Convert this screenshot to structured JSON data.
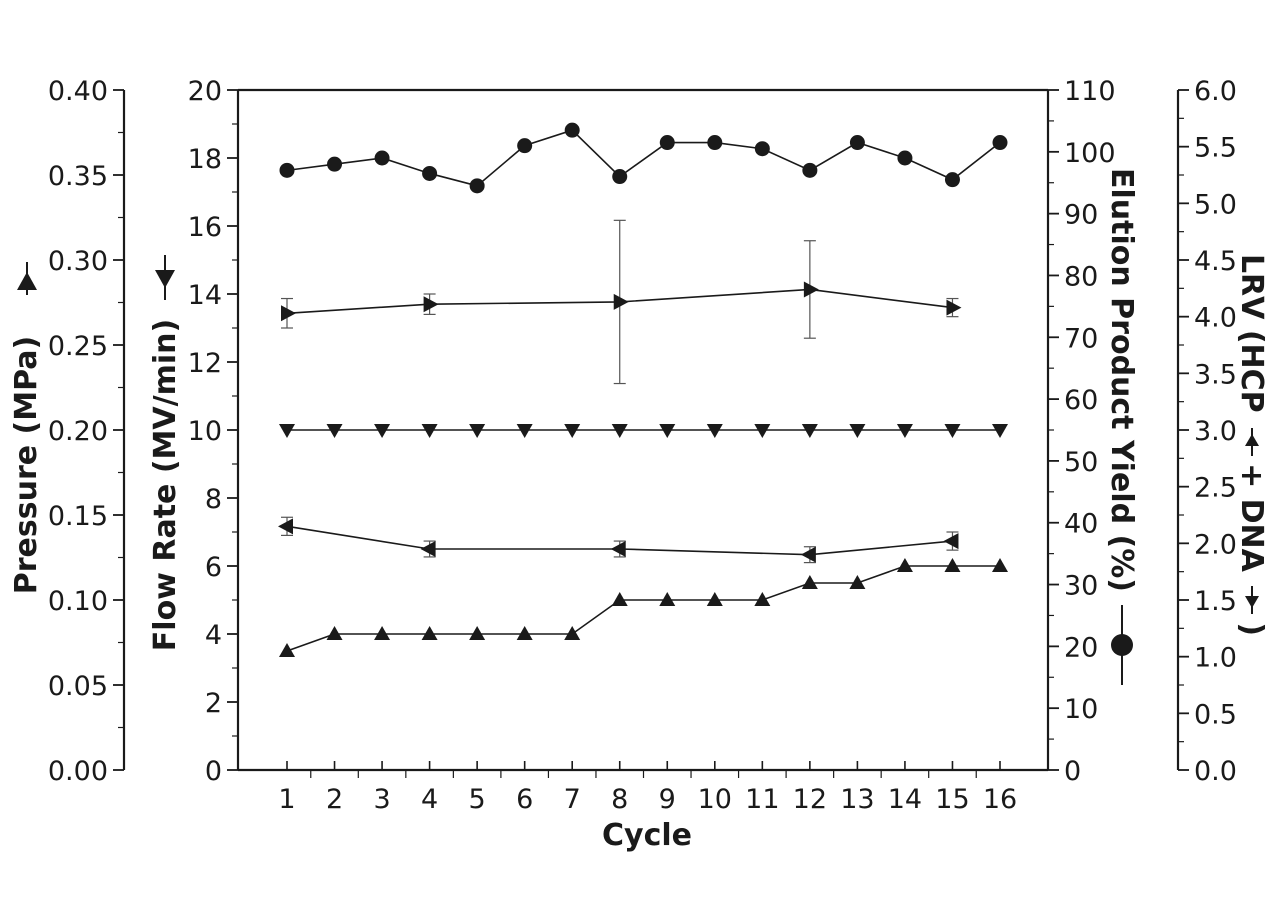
{
  "chart_data": {
    "type": "line",
    "xlabel": "Cycle",
    "x_ticks": [
      1,
      2,
      3,
      4,
      5,
      6,
      7,
      8,
      9,
      10,
      11,
      12,
      13,
      14,
      15,
      16
    ],
    "axes": {
      "flow": {
        "label": "Flow Rate (MV/min)",
        "range": [
          0,
          20
        ],
        "ticks": [
          "0",
          "2",
          "4",
          "6",
          "8",
          "10",
          "12",
          "14",
          "16",
          "18",
          "20"
        ],
        "tick_values": [
          0,
          2,
          4,
          6,
          8,
          10,
          12,
          14,
          16,
          18,
          20
        ]
      },
      "pressure": {
        "label": "Pressure (MPa)",
        "range": [
          0,
          0.4
        ],
        "ticks": [
          "0.00",
          "0.05",
          "0.10",
          "0.15",
          "0.20",
          "0.25",
          "0.30",
          "0.35",
          "0.40"
        ],
        "tick_values": [
          0,
          0.05,
          0.1,
          0.15,
          0.2,
          0.25,
          0.3,
          0.35,
          0.4
        ]
      },
      "yield": {
        "label": "Elution Product Yield (%)",
        "range": [
          0,
          110
        ],
        "ticks": [
          "0",
          "10",
          "20",
          "30",
          "40",
          "50",
          "60",
          "70",
          "80",
          "90",
          "100",
          "110"
        ],
        "tick_values": [
          0,
          10,
          20,
          30,
          40,
          50,
          60,
          70,
          80,
          90,
          100,
          110
        ]
      },
      "lrv": {
        "label": "LRV (HCP",
        "label_mid": " + DNA",
        "label_end": ")",
        "range": [
          0,
          6
        ],
        "ticks": [
          "0.0",
          "0.5",
          "1.0",
          "1.5",
          "2.0",
          "2.5",
          "3.0",
          "3.5",
          "4.0",
          "4.5",
          "5.0",
          "5.5",
          "6.0"
        ],
        "tick_values": [
          0,
          0.5,
          1,
          1.5,
          2,
          2.5,
          3,
          3.5,
          4,
          4.5,
          5,
          5.5,
          6
        ]
      }
    },
    "series": [
      {
        "name": "Elution Product Yield",
        "axis": "yield",
        "marker": "circle",
        "x": [
          1,
          2,
          3,
          4,
          5,
          6,
          7,
          8,
          9,
          10,
          11,
          12,
          13,
          14,
          15,
          16
        ],
        "values": [
          97,
          98,
          99,
          96.5,
          94.5,
          101,
          103.5,
          96,
          101.5,
          101.5,
          100.5,
          97,
          101.5,
          99,
          95.5,
          101.5
        ]
      },
      {
        "name": "Flow Rate",
        "axis": "flow",
        "marker": "triangle-down",
        "x": [
          1,
          2,
          3,
          4,
          5,
          6,
          7,
          8,
          9,
          10,
          11,
          12,
          13,
          14,
          15,
          16
        ],
        "values": [
          10,
          10,
          10,
          10,
          10,
          10,
          10,
          10,
          10,
          10,
          10,
          10,
          10,
          10,
          10,
          10
        ]
      },
      {
        "name": "Pressure",
        "axis": "pressure",
        "marker": "triangle-up",
        "x": [
          1,
          2,
          3,
          4,
          5,
          6,
          7,
          8,
          9,
          10,
          11,
          12,
          13,
          14,
          15,
          16
        ],
        "values": [
          0.07,
          0.08,
          0.08,
          0.08,
          0.08,
          0.08,
          0.08,
          0.1,
          0.1,
          0.1,
          0.1,
          0.11,
          0.11,
          0.12,
          0.12,
          0.12
        ]
      },
      {
        "name": "LRV DNA",
        "axis": "lrv",
        "marker": "triangle-right",
        "x": [
          1,
          4,
          8,
          12,
          15
        ],
        "values": [
          4.03,
          4.11,
          4.13,
          4.24,
          4.08
        ],
        "error": [
          0.13,
          0.09,
          0.72,
          0.43,
          0.08
        ]
      },
      {
        "name": "LRV HCP",
        "axis": "lrv",
        "marker": "triangle-left",
        "x": [
          1,
          4,
          8,
          12,
          15
        ],
        "values": [
          2.15,
          1.95,
          1.95,
          1.9,
          2.02
        ],
        "error": [
          0.08,
          0.07,
          0.07,
          0.07,
          0.08
        ]
      }
    ]
  }
}
